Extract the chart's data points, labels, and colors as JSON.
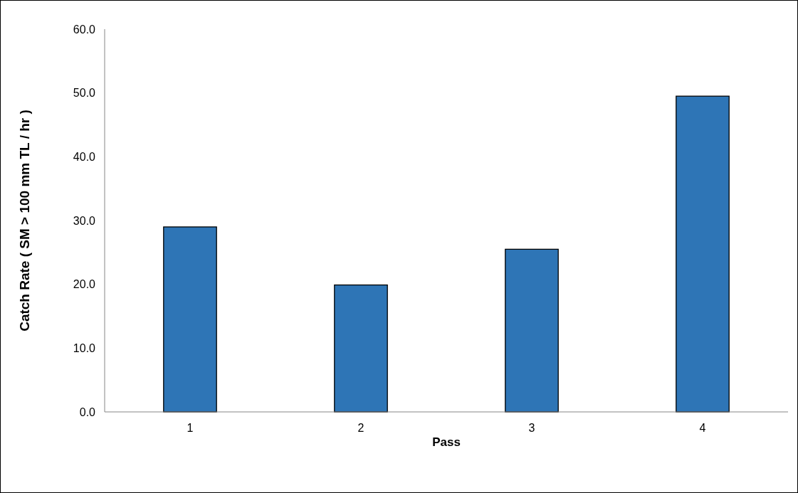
{
  "chart_data": {
    "type": "bar",
    "xlabel": "Pass",
    "ylabel": "Catch Rate ( SM > 100 mm TL / hr )",
    "categories": [
      "1",
      "2",
      "3",
      "4"
    ],
    "values": [
      29.0,
      19.9,
      25.5,
      49.5
    ],
    "color": "#2e75b6",
    "ylim": [
      0,
      60
    ],
    "yticks": [
      {
        "value": 0,
        "label": "0.0"
      },
      {
        "value": 10,
        "label": "10.0"
      },
      {
        "value": 20,
        "label": "20.0"
      },
      {
        "value": 30,
        "label": "30.0"
      },
      {
        "value": 40,
        "label": "40.0"
      },
      {
        "value": 50,
        "label": "50.0"
      },
      {
        "value": 60,
        "label": "60.0"
      }
    ],
    "grid": false
  }
}
